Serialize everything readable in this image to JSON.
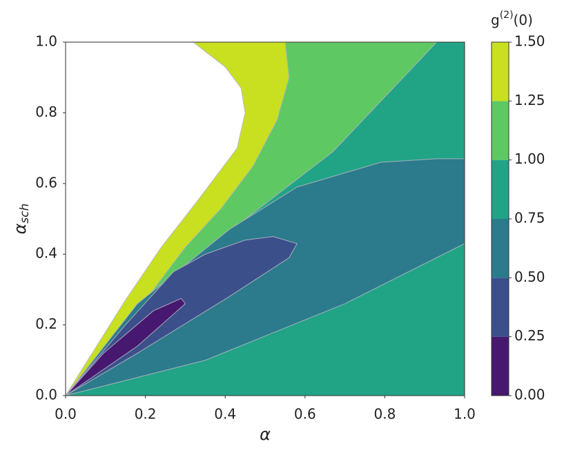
{
  "chart_data": {
    "type": "contour",
    "xlabel": "α",
    "ylabel": {
      "main": "α",
      "sub": "sch"
    },
    "xlim": [
      0,
      1
    ],
    "ylim": [
      0,
      1
    ],
    "xticks": [
      {
        "value": 0,
        "label": "0.0"
      },
      {
        "value": 0.2,
        "label": "0.2"
      },
      {
        "value": 0.4,
        "label": "0.4"
      },
      {
        "value": 0.6,
        "label": "0.6"
      },
      {
        "value": 0.8,
        "label": "0.8"
      },
      {
        "value": 1,
        "label": "1.0"
      }
    ],
    "yticks": [
      {
        "value": 0,
        "label": "0.0"
      },
      {
        "value": 0.2,
        "label": "0.2"
      },
      {
        "value": 0.4,
        "label": "0.4"
      },
      {
        "value": 0.6,
        "label": "0.6"
      },
      {
        "value": 0.8,
        "label": "0.8"
      },
      {
        "value": 1,
        "label": "1.0"
      }
    ],
    "colorbar": {
      "label": {
        "main": "g",
        "sup": "(2)",
        "tail": "(0)"
      },
      "ticks": [
        {
          "value": 0,
          "label": "0.00"
        },
        {
          "value": 0.25,
          "label": "0.25"
        },
        {
          "value": 0.5,
          "label": "0.50"
        },
        {
          "value": 0.75,
          "label": "0.75"
        },
        {
          "value": 1,
          "label": "1.00"
        },
        {
          "value": 1.25,
          "label": "1.25"
        },
        {
          "value": 1.5,
          "label": "1.50"
        }
      ],
      "colors": [
        "#46186f",
        "#3b4f8b",
        "#2b7b8c",
        "#21a386",
        "#5ec962",
        "#c8e020"
      ]
    },
    "regions": [
      {
        "level": 0.75,
        "x": [
          0,
          1,
          1,
          0
        ],
        "y": [
          0,
          0,
          1,
          1
        ]
      },
      {
        "level": 1.0,
        "x": [
          0,
          0.2,
          0.36,
          0.52,
          0.67,
          0.93,
          0
        ],
        "y": [
          0,
          0.24,
          0.42,
          0.56,
          0.69,
          1,
          1
        ]
      },
      {
        "level": 1.25,
        "x": [
          0,
          0.2,
          0.3,
          0.39,
          0.47,
          0.53,
          0.56,
          0.55,
          0
        ],
        "y": [
          0,
          0.27,
          0.42,
          0.53,
          0.65,
          0.78,
          0.9,
          1,
          1
        ]
      },
      {
        "level": 0.5,
        "x": [
          0,
          0.18,
          0.41,
          0.58,
          0.79,
          0.93,
          1,
          1,
          0.7,
          0.35
        ],
        "y": [
          0,
          0.26,
          0.47,
          0.59,
          0.66,
          0.67,
          0.67,
          0.43,
          0.26,
          0.1
        ]
      },
      {
        "level": 0.25,
        "x": [
          0,
          0.15,
          0.27,
          0.35,
          0.45,
          0.52,
          0.58,
          0.56,
          0.41,
          0.18
        ],
        "y": [
          0,
          0.2,
          0.35,
          0.4,
          0.44,
          0.45,
          0.43,
          0.39,
          0.28,
          0.12
        ]
      },
      {
        "level": 0,
        "x": [
          0,
          0.095,
          0.22,
          0.29,
          0.3,
          0.18
        ],
        "y": [
          0,
          0.12,
          0.24,
          0.275,
          0.26,
          0.14
        ]
      }
    ],
    "above_color": "#ffffff",
    "above_region": {
      "level": 1.5,
      "x": [
        0,
        0.15,
        0.24,
        0.33,
        0.43,
        0.45,
        0.44,
        0.4,
        0.32,
        0
      ],
      "y": [
        0,
        0.27,
        0.42,
        0.55,
        0.7,
        0.8,
        0.87,
        0.93,
        1,
        1
      ]
    }
  }
}
